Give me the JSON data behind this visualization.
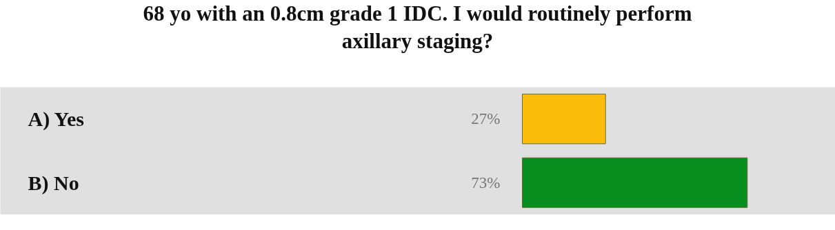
{
  "chart_data": {
    "type": "bar",
    "orientation": "horizontal",
    "title": "68 yo with an 0.8cm grade 1 IDC. I would routinely perform axillary staging?",
    "categories": [
      "A) Yes",
      "B) No"
    ],
    "values": [
      27,
      73
    ],
    "colors": [
      "#fbbc0c",
      "#078c1e"
    ],
    "value_labels": [
      "27%",
      "73%"
    ]
  }
}
